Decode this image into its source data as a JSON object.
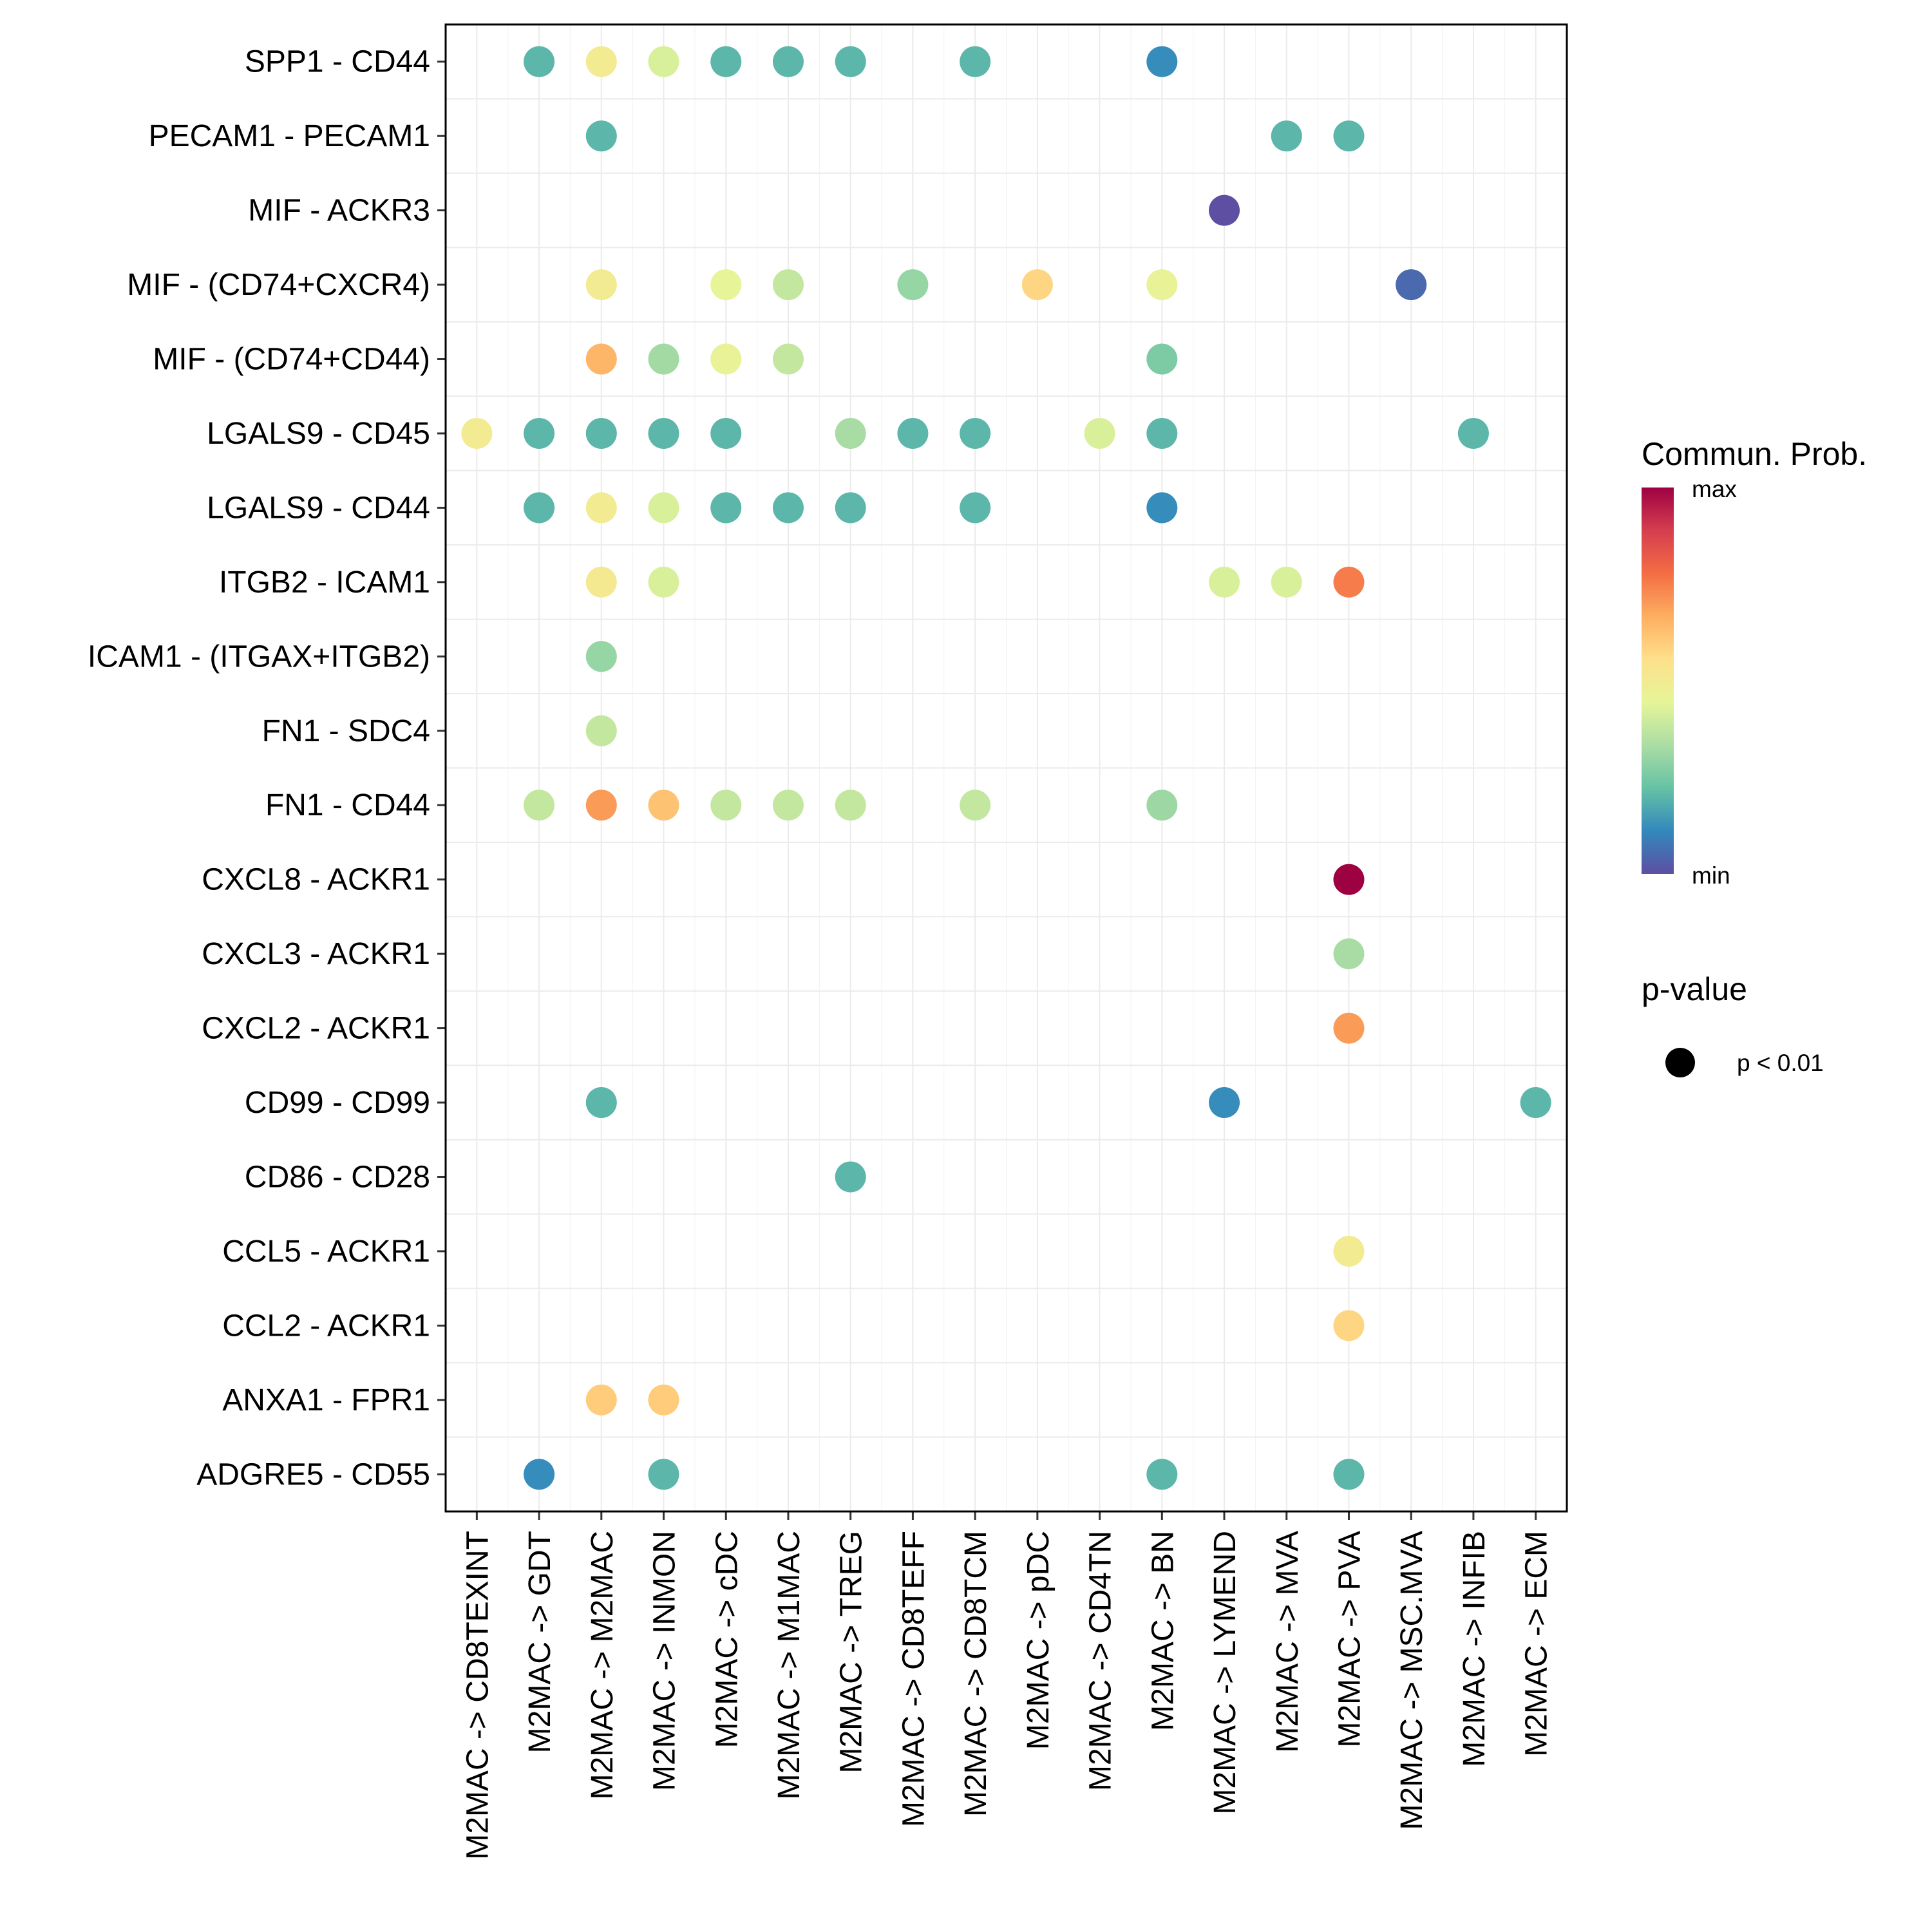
{
  "chart_data": {
    "type": "scatter",
    "subtype": "dot-plot",
    "title": "",
    "xlabel": "",
    "ylabel": "",
    "grid": true,
    "x_categories": [
      "M2MAC -> CD8TEXINT",
      "M2MAC -> GDT",
      "M2MAC -> M2MAC",
      "M2MAC -> INMON",
      "M2MAC -> cDC",
      "M2MAC -> M1MAC",
      "M2MAC -> TREG",
      "M2MAC -> CD8TEFF",
      "M2MAC -> CD8TCM",
      "M2MAC -> pDC",
      "M2MAC -> CD4TN",
      "M2MAC -> BN",
      "M2MAC -> LYMEND",
      "M2MAC -> MVA",
      "M2MAC -> PVA",
      "M2MAC -> MSC.MVA",
      "M2MAC -> INFIB",
      "M2MAC -> ECM"
    ],
    "y_categories": [
      "SPP1 - CD44",
      "PECAM1 - PECAM1",
      "MIF - ACKR3",
      "MIF - (CD74+CXCR4)",
      "MIF - (CD74+CD44)",
      "LGALS9 - CD45",
      "LGALS9 - CD44",
      "ITGB2 - ICAM1",
      "ICAM1 - (ITGAX+ITGB2)",
      "FN1 - SDC4",
      "FN1 - CD44",
      "CXCL8 - ACKR1",
      "CXCL3 - ACKR1",
      "CXCL2 - ACKR1",
      "CD99 - CD99",
      "CD86 - CD28",
      "CCL5 - ACKR1",
      "CCL2 - ACKR1",
      "ANXA1 - FPR1",
      "ADGRE5 - CD55"
    ],
    "value_note": "prob is relative communication probability on the color scale (0 = min, 1 = max), estimated from dot color",
    "points": [
      {
        "y": "SPP1 - CD44",
        "x": "M2MAC -> GDT",
        "prob": 0.2
      },
      {
        "y": "SPP1 - CD44",
        "x": "M2MAC -> M2MAC",
        "prob": 0.5
      },
      {
        "y": "SPP1 - CD44",
        "x": "M2MAC -> INMON",
        "prob": 0.42
      },
      {
        "y": "SPP1 - CD44",
        "x": "M2MAC -> cDC",
        "prob": 0.2
      },
      {
        "y": "SPP1 - CD44",
        "x": "M2MAC -> M1MAC",
        "prob": 0.2
      },
      {
        "y": "SPP1 - CD44",
        "x": "M2MAC -> TREG",
        "prob": 0.2
      },
      {
        "y": "SPP1 - CD44",
        "x": "M2MAC -> CD8TCM",
        "prob": 0.2
      },
      {
        "y": "SPP1 - CD44",
        "x": "M2MAC -> BN",
        "prob": 0.12
      },
      {
        "y": "PECAM1 - PECAM1",
        "x": "M2MAC -> M2MAC",
        "prob": 0.2
      },
      {
        "y": "PECAM1 - PECAM1",
        "x": "M2MAC -> MVA",
        "prob": 0.2
      },
      {
        "y": "PECAM1 - PECAM1",
        "x": "M2MAC -> PVA",
        "prob": 0.2
      },
      {
        "y": "MIF - ACKR3",
        "x": "M2MAC -> LYMEND",
        "prob": 0.0
      },
      {
        "y": "MIF - (CD74+CXCR4)",
        "x": "M2MAC -> M2MAC",
        "prob": 0.5
      },
      {
        "y": "MIF - (CD74+CXCR4)",
        "x": "M2MAC -> cDC",
        "prob": 0.45
      },
      {
        "y": "MIF - (CD74+CXCR4)",
        "x": "M2MAC -> M1MAC",
        "prob": 0.38
      },
      {
        "y": "MIF - (CD74+CXCR4)",
        "x": "M2MAC -> CD8TEFF",
        "prob": 0.3
      },
      {
        "y": "MIF - (CD74+CXCR4)",
        "x": "M2MAC -> pDC",
        "prob": 0.58
      },
      {
        "y": "MIF - (CD74+CXCR4)",
        "x": "M2MAC -> BN",
        "prob": 0.46
      },
      {
        "y": "MIF - (CD74+CXCR4)",
        "x": "M2MAC -> MSC.MVA",
        "prob": 0.05
      },
      {
        "y": "MIF - (CD74+CD44)",
        "x": "M2MAC -> M2MAC",
        "prob": 0.65
      },
      {
        "y": "MIF - (CD74+CD44)",
        "x": "M2MAC -> INMON",
        "prob": 0.32
      },
      {
        "y": "MIF - (CD74+CD44)",
        "x": "M2MAC -> cDC",
        "prob": 0.46
      },
      {
        "y": "MIF - (CD74+CD44)",
        "x": "M2MAC -> M1MAC",
        "prob": 0.38
      },
      {
        "y": "MIF - (CD74+CD44)",
        "x": "M2MAC -> BN",
        "prob": 0.26
      },
      {
        "y": "LGALS9 - CD45",
        "x": "M2MAC -> CD8TEXINT",
        "prob": 0.5
      },
      {
        "y": "LGALS9 - CD45",
        "x": "M2MAC -> GDT",
        "prob": 0.2
      },
      {
        "y": "LGALS9 - CD45",
        "x": "M2MAC -> M2MAC",
        "prob": 0.2
      },
      {
        "y": "LGALS9 - CD45",
        "x": "M2MAC -> INMON",
        "prob": 0.2
      },
      {
        "y": "LGALS9 - CD45",
        "x": "M2MAC -> cDC",
        "prob": 0.2
      },
      {
        "y": "LGALS9 - CD45",
        "x": "M2MAC -> TREG",
        "prob": 0.33
      },
      {
        "y": "LGALS9 - CD45",
        "x": "M2MAC -> CD8TEFF",
        "prob": 0.2
      },
      {
        "y": "LGALS9 - CD45",
        "x": "M2MAC -> CD8TCM",
        "prob": 0.2
      },
      {
        "y": "LGALS9 - CD45",
        "x": "M2MAC -> CD4TN",
        "prob": 0.42
      },
      {
        "y": "LGALS9 - CD45",
        "x": "M2MAC -> BN",
        "prob": 0.2
      },
      {
        "y": "LGALS9 - CD45",
        "x": "M2MAC -> INFIB",
        "prob": 0.2
      },
      {
        "y": "LGALS9 - CD44",
        "x": "M2MAC -> GDT",
        "prob": 0.2
      },
      {
        "y": "LGALS9 - CD44",
        "x": "M2MAC -> M2MAC",
        "prob": 0.5
      },
      {
        "y": "LGALS9 - CD44",
        "x": "M2MAC -> INMON",
        "prob": 0.42
      },
      {
        "y": "LGALS9 - CD44",
        "x": "M2MAC -> cDC",
        "prob": 0.2
      },
      {
        "y": "LGALS9 - CD44",
        "x": "M2MAC -> M1MAC",
        "prob": 0.2
      },
      {
        "y": "LGALS9 - CD44",
        "x": "M2MAC -> TREG",
        "prob": 0.2
      },
      {
        "y": "LGALS9 - CD44",
        "x": "M2MAC -> CD8TCM",
        "prob": 0.2
      },
      {
        "y": "LGALS9 - CD44",
        "x": "M2MAC -> BN",
        "prob": 0.12
      },
      {
        "y": "ITGB2 - ICAM1",
        "x": "M2MAC -> M2MAC",
        "prob": 0.51
      },
      {
        "y": "ITGB2 - ICAM1",
        "x": "M2MAC -> INMON",
        "prob": 0.42
      },
      {
        "y": "ITGB2 - ICAM1",
        "x": "M2MAC -> LYMEND",
        "prob": 0.42
      },
      {
        "y": "ITGB2 - ICAM1",
        "x": "M2MAC -> MVA",
        "prob": 0.42
      },
      {
        "y": "ITGB2 - ICAM1",
        "x": "M2MAC -> PVA",
        "prob": 0.75
      },
      {
        "y": "ICAM1 - (ITGAX+ITGB2)",
        "x": "M2MAC -> M2MAC",
        "prob": 0.3
      },
      {
        "y": "FN1 - SDC4",
        "x": "M2MAC -> M2MAC",
        "prob": 0.38
      },
      {
        "y": "FN1 - CD44",
        "x": "M2MAC -> GDT",
        "prob": 0.38
      },
      {
        "y": "FN1 - CD44",
        "x": "M2MAC -> M2MAC",
        "prob": 0.7
      },
      {
        "y": "FN1 - CD44",
        "x": "M2MAC -> INMON",
        "prob": 0.62
      },
      {
        "y": "FN1 - CD44",
        "x": "M2MAC -> cDC",
        "prob": 0.38
      },
      {
        "y": "FN1 - CD44",
        "x": "M2MAC -> M1MAC",
        "prob": 0.38
      },
      {
        "y": "FN1 - CD44",
        "x": "M2MAC -> TREG",
        "prob": 0.38
      },
      {
        "y": "FN1 - CD44",
        "x": "M2MAC -> CD8TCM",
        "prob": 0.38
      },
      {
        "y": "FN1 - CD44",
        "x": "M2MAC -> BN",
        "prob": 0.31
      },
      {
        "y": "CXCL8 - ACKR1",
        "x": "M2MAC -> PVA",
        "prob": 1.0
      },
      {
        "y": "CXCL3 - ACKR1",
        "x": "M2MAC -> PVA",
        "prob": 0.33
      },
      {
        "y": "CXCL2 - ACKR1",
        "x": "M2MAC -> PVA",
        "prob": 0.7
      },
      {
        "y": "CD99 - CD99",
        "x": "M2MAC -> M2MAC",
        "prob": 0.2
      },
      {
        "y": "CD99 - CD99",
        "x": "M2MAC -> LYMEND",
        "prob": 0.12
      },
      {
        "y": "CD99 - CD99",
        "x": "M2MAC -> ECM",
        "prob": 0.2
      },
      {
        "y": "CD86 - CD28",
        "x": "M2MAC -> TREG",
        "prob": 0.2
      },
      {
        "y": "CCL5 - ACKR1",
        "x": "M2MAC -> PVA",
        "prob": 0.5
      },
      {
        "y": "CCL2 - ACKR1",
        "x": "M2MAC -> PVA",
        "prob": 0.58
      },
      {
        "y": "ANXA1 - FPR1",
        "x": "M2MAC -> M2MAC",
        "prob": 0.6
      },
      {
        "y": "ANXA1 - FPR1",
        "x": "M2MAC -> INMON",
        "prob": 0.6
      },
      {
        "y": "ADGRE5 - CD55",
        "x": "M2MAC -> GDT",
        "prob": 0.12
      },
      {
        "y": "ADGRE5 - CD55",
        "x": "M2MAC -> INMON",
        "prob": 0.2
      },
      {
        "y": "ADGRE5 - CD55",
        "x": "M2MAC -> BN",
        "prob": 0.2
      },
      {
        "y": "ADGRE5 - CD55",
        "x": "M2MAC -> PVA",
        "prob": 0.2
      }
    ],
    "color_scale": {
      "title": "Commun. Prob.",
      "max_label": "max",
      "min_label": "min",
      "colors_min_to_max": [
        "#5E4FA2",
        "#3288BD",
        "#66C2A5",
        "#ABDDA4",
        "#E6F598",
        "#FEE08B",
        "#FDAE61",
        "#F46D43",
        "#D53E4F",
        "#9E0142"
      ]
    },
    "size_legend": {
      "title": "p-value",
      "entries": [
        {
          "label": "p < 0.01"
        }
      ]
    },
    "legend_position": "right"
  }
}
